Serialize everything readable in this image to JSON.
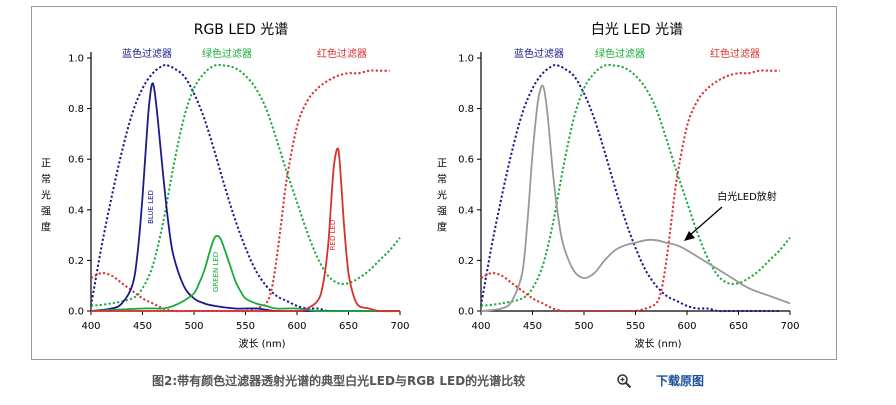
{
  "colors": {
    "blue": "#1a1a8c",
    "green": "#1aaa3a",
    "red": "#d93030",
    "gray": "#999999",
    "axis": "#000000",
    "caption": "#555555",
    "link": "#1a4f9c"
  },
  "caption": {
    "text": "图2:带有颜色过滤器透射光谱的典型白光LED与RGB LED的光谱比较",
    "zoom_icon": "magnifier-plus-icon",
    "download_label": "下载原图"
  },
  "chart_data": [
    {
      "type": "line",
      "title": "RGB LED 光谱",
      "xlabel": "波长 (nm)",
      "ylabel": "正常光强度",
      "xlim": [
        400,
        700
      ],
      "ylim": [
        0,
        1.0
      ],
      "xticks": [
        400,
        450,
        500,
        550,
        600,
        650,
        700
      ],
      "yticks": [
        0.0,
        0.2,
        0.4,
        0.6,
        0.8,
        1.0
      ],
      "filter_labels": [
        "蓝色过滤器",
        "绿色过滤器",
        "红色过滤器"
      ],
      "series": [
        {
          "name": "蓝色过滤器",
          "color": "blue",
          "dashed": true,
          "x": [
            400,
            410,
            420,
            430,
            440,
            450,
            460,
            470,
            475,
            480,
            490,
            500,
            510,
            520,
            530,
            540,
            550,
            560,
            570,
            580,
            590,
            600,
            610,
            620,
            630,
            640,
            650,
            660,
            670,
            680,
            690
          ],
          "y": [
            0.02,
            0.25,
            0.45,
            0.63,
            0.78,
            0.88,
            0.94,
            0.97,
            0.97,
            0.96,
            0.93,
            0.86,
            0.76,
            0.63,
            0.49,
            0.36,
            0.25,
            0.16,
            0.1,
            0.06,
            0.04,
            0.02,
            0.01,
            0.01,
            0,
            0,
            0,
            0,
            0,
            0,
            0
          ]
        },
        {
          "name": "绿色过滤器",
          "color": "green",
          "dashed": true,
          "x": [
            400,
            420,
            440,
            450,
            460,
            470,
            480,
            490,
            500,
            510,
            520,
            530,
            540,
            550,
            560,
            570,
            580,
            590,
            600,
            610,
            620,
            630,
            640,
            650,
            660,
            670,
            680,
            690,
            700
          ],
          "y": [
            0.02,
            0.03,
            0.05,
            0.09,
            0.18,
            0.35,
            0.57,
            0.76,
            0.88,
            0.94,
            0.97,
            0.97,
            0.96,
            0.93,
            0.88,
            0.8,
            0.68,
            0.55,
            0.43,
            0.31,
            0.21,
            0.14,
            0.11,
            0.11,
            0.13,
            0.16,
            0.2,
            0.24,
            0.29
          ]
        },
        {
          "name": "红色过滤器",
          "color": "red",
          "dashed": true,
          "x": [
            400,
            410,
            420,
            430,
            440,
            450,
            460,
            470,
            480,
            490,
            500,
            510,
            520,
            530,
            540,
            550,
            560,
            570,
            575,
            580,
            585,
            590,
            600,
            610,
            620,
            630,
            640,
            650,
            660,
            670,
            680,
            690
          ],
          "y": [
            0.13,
            0.15,
            0.14,
            0.11,
            0.08,
            0.05,
            0.03,
            0.01,
            0,
            0,
            0,
            0,
            0,
            0,
            0,
            0,
            0.01,
            0.03,
            0.08,
            0.2,
            0.36,
            0.52,
            0.73,
            0.83,
            0.88,
            0.91,
            0.93,
            0.94,
            0.94,
            0.95,
            0.95,
            0.95
          ]
        },
        {
          "name": "BLUE LED",
          "color": "blue",
          "dashed": false,
          "x": [
            400,
            420,
            430,
            440,
            445,
            450,
            455,
            458,
            460,
            462,
            465,
            470,
            475,
            480,
            490,
            500,
            510,
            520,
            540,
            560,
            580,
            600,
            620,
            640,
            660,
            680,
            700
          ],
          "y": [
            0,
            0.01,
            0.03,
            0.1,
            0.22,
            0.45,
            0.75,
            0.87,
            0.9,
            0.86,
            0.75,
            0.54,
            0.35,
            0.22,
            0.1,
            0.05,
            0.03,
            0.02,
            0.01,
            0.01,
            0,
            0,
            0,
            0,
            0,
            0,
            0
          ]
        },
        {
          "name": "GREEN LED",
          "color": "green",
          "dashed": false,
          "x": [
            400,
            450,
            470,
            480,
            490,
            500,
            505,
            510,
            515,
            520,
            525,
            530,
            535,
            540,
            545,
            550,
            560,
            570,
            580,
            600,
            620,
            640,
            660,
            680,
            700
          ],
          "y": [
            0,
            0.01,
            0.01,
            0.02,
            0.04,
            0.07,
            0.11,
            0.16,
            0.23,
            0.29,
            0.29,
            0.24,
            0.18,
            0.12,
            0.08,
            0.05,
            0.03,
            0.02,
            0.01,
            0.01,
            0,
            0,
            0,
            0,
            0
          ]
        },
        {
          "name": "RED LED",
          "color": "red",
          "dashed": false,
          "x": [
            400,
            550,
            600,
            610,
            620,
            625,
            630,
            633,
            636,
            640,
            643,
            646,
            650,
            655,
            660,
            670,
            680,
            700
          ],
          "y": [
            0,
            0,
            0,
            0.01,
            0.04,
            0.1,
            0.25,
            0.42,
            0.58,
            0.64,
            0.5,
            0.32,
            0.15,
            0.06,
            0.02,
            0.01,
            0,
            0
          ]
        }
      ],
      "annotations": [
        "BLUE LED",
        "GREEN LED",
        "RED LED"
      ]
    },
    {
      "type": "line",
      "title": "白光 LED 光谱",
      "xlabel": "波长 (nm)",
      "ylabel": "正常光强度",
      "xlim": [
        400,
        700
      ],
      "ylim": [
        0,
        1.0
      ],
      "xticks": [
        400,
        450,
        500,
        550,
        600,
        650,
        700
      ],
      "yticks": [
        0.0,
        0.2,
        0.4,
        0.6,
        0.8,
        1.0
      ],
      "filter_labels": [
        "蓝色过滤器",
        "绿色过滤器",
        "红色过滤器"
      ],
      "series": [
        {
          "name": "蓝色过滤器",
          "color": "blue",
          "dashed": true,
          "x": [
            400,
            410,
            420,
            430,
            440,
            450,
            460,
            470,
            475,
            480,
            490,
            500,
            510,
            520,
            530,
            540,
            550,
            560,
            570,
            580,
            590,
            600,
            610,
            620,
            630,
            640,
            650,
            660,
            670,
            680,
            690
          ],
          "y": [
            0.02,
            0.25,
            0.45,
            0.63,
            0.78,
            0.88,
            0.94,
            0.97,
            0.97,
            0.96,
            0.93,
            0.86,
            0.76,
            0.63,
            0.49,
            0.36,
            0.25,
            0.16,
            0.1,
            0.06,
            0.04,
            0.02,
            0.01,
            0.01,
            0,
            0,
            0,
            0,
            0,
            0,
            0
          ]
        },
        {
          "name": "绿色过滤器",
          "color": "green",
          "dashed": true,
          "x": [
            400,
            420,
            440,
            450,
            460,
            470,
            480,
            490,
            500,
            510,
            520,
            530,
            540,
            550,
            560,
            570,
            580,
            590,
            600,
            610,
            620,
            630,
            640,
            650,
            660,
            670,
            680,
            690,
            700
          ],
          "y": [
            0.02,
            0.03,
            0.05,
            0.09,
            0.18,
            0.35,
            0.57,
            0.76,
            0.88,
            0.94,
            0.97,
            0.97,
            0.96,
            0.93,
            0.88,
            0.8,
            0.68,
            0.55,
            0.43,
            0.31,
            0.21,
            0.14,
            0.11,
            0.11,
            0.13,
            0.16,
            0.2,
            0.24,
            0.29
          ]
        },
        {
          "name": "红色过滤器",
          "color": "red",
          "dashed": true,
          "x": [
            400,
            410,
            420,
            430,
            440,
            450,
            460,
            470,
            480,
            490,
            500,
            510,
            520,
            530,
            540,
            550,
            560,
            570,
            575,
            580,
            585,
            590,
            600,
            610,
            620,
            630,
            640,
            650,
            660,
            670,
            680,
            690
          ],
          "y": [
            0.13,
            0.15,
            0.14,
            0.11,
            0.08,
            0.05,
            0.03,
            0.01,
            0,
            0,
            0,
            0,
            0,
            0,
            0,
            0,
            0.01,
            0.03,
            0.08,
            0.2,
            0.36,
            0.52,
            0.73,
            0.83,
            0.88,
            0.91,
            0.93,
            0.94,
            0.94,
            0.95,
            0.95,
            0.95
          ]
        },
        {
          "name": "白光LED放射",
          "color": "gray",
          "dashed": false,
          "x": [
            400,
            420,
            430,
            440,
            445,
            450,
            455,
            458,
            460,
            462,
            465,
            470,
            475,
            480,
            490,
            500,
            510,
            520,
            530,
            540,
            550,
            560,
            570,
            580,
            590,
            600,
            620,
            640,
            660,
            680,
            700
          ],
          "y": [
            0,
            0.01,
            0.04,
            0.15,
            0.35,
            0.62,
            0.82,
            0.88,
            0.89,
            0.86,
            0.76,
            0.54,
            0.37,
            0.26,
            0.16,
            0.13,
            0.15,
            0.2,
            0.24,
            0.26,
            0.27,
            0.28,
            0.28,
            0.27,
            0.26,
            0.24,
            0.19,
            0.14,
            0.09,
            0.06,
            0.03
          ]
        }
      ],
      "annotations": [
        "白光LED放射"
      ]
    }
  ]
}
